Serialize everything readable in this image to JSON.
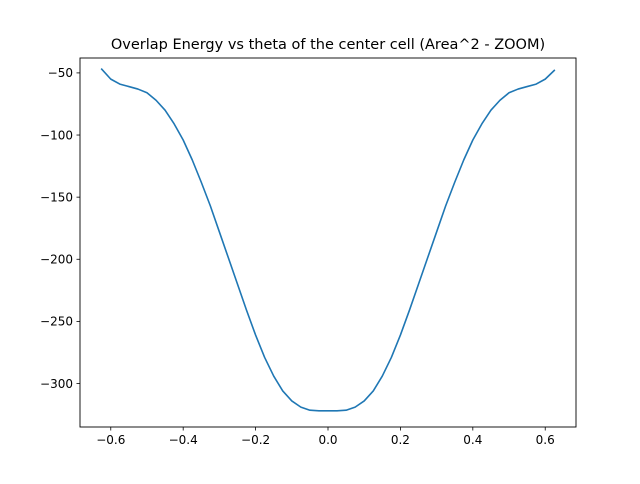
{
  "chart_data": {
    "type": "line",
    "title": "Overlap Energy vs theta of the center cell (Area^2 - ZOOM)",
    "xlabel": "",
    "ylabel": "",
    "xlim": [
      -0.685,
      0.685
    ],
    "ylim": [
      -335,
      -38
    ],
    "x_ticks": [
      -0.6,
      -0.4,
      -0.2,
      0.0,
      0.2,
      0.4,
      0.6
    ],
    "x_tick_labels": [
      "−0.6",
      "−0.4",
      "−0.2",
      "0.0",
      "0.2",
      "0.4",
      "0.6"
    ],
    "y_ticks": [
      -50,
      -100,
      -150,
      -200,
      -250,
      -300
    ],
    "y_tick_labels": [
      "−50",
      "−100",
      "−150",
      "−200",
      "−250",
      "−300"
    ],
    "grid": false,
    "series": [
      {
        "color": "#1f77b4",
        "x": [
          -0.625,
          -0.6,
          -0.575,
          -0.55,
          -0.525,
          -0.5,
          -0.475,
          -0.45,
          -0.425,
          -0.4,
          -0.375,
          -0.35,
          -0.325,
          -0.3,
          -0.275,
          -0.25,
          -0.225,
          -0.2,
          -0.175,
          -0.15,
          -0.125,
          -0.1,
          -0.075,
          -0.05,
          -0.025,
          0.0,
          0.025,
          0.05,
          0.075,
          0.1,
          0.125,
          0.15,
          0.175,
          0.2,
          0.225,
          0.25,
          0.275,
          0.3,
          0.325,
          0.35,
          0.375,
          0.4,
          0.425,
          0.45,
          0.475,
          0.5,
          0.525,
          0.55,
          0.575,
          0.6,
          0.625
        ],
        "y": [
          -47,
          -55,
          -59,
          -61,
          -63,
          -66,
          -72,
          -80,
          -91,
          -104,
          -120,
          -138,
          -157,
          -178,
          -199,
          -220,
          -241,
          -261,
          -279,
          -294,
          -306,
          -314,
          -319,
          -321.5,
          -322,
          -322,
          -322,
          -321.5,
          -319,
          -314,
          -306,
          -294,
          -279,
          -261,
          -241,
          -220,
          -199,
          -178,
          -157,
          -138,
          -120,
          -104,
          -91,
          -80,
          -72,
          -66,
          -63,
          -61,
          -59,
          -55,
          -48
        ]
      }
    ]
  }
}
